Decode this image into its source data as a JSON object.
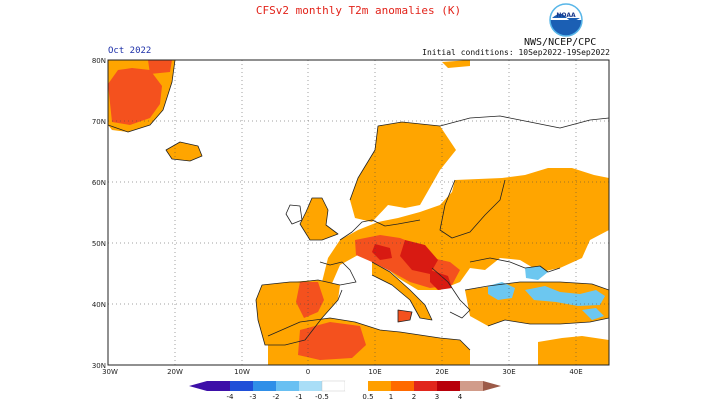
{
  "header": {
    "title": "CFSv2 monthly T2m anomalies (K)",
    "agency": "NWS/NCEP/CPC",
    "period": "Oct 2022",
    "initial_conditions": "Initial conditions: 10Sep2022-19Sep2022",
    "logo_text": "NOAA"
  },
  "map": {
    "region": "Europe",
    "lat_range": [
      30,
      80
    ],
    "lon_range": [
      -30,
      45
    ],
    "lat_labels": [
      "80N",
      "70N",
      "60N",
      "50N",
      "40N",
      "30N"
    ],
    "lon_labels": [
      "30W",
      "20W",
      "10W",
      "0",
      "10E",
      "20E",
      "30E",
      "40E"
    ],
    "projection": "lat-lon grid with dotted gridlines every 10 degrees"
  },
  "colorbar": {
    "ticks": [
      "-4",
      "-3",
      "-2",
      "-1",
      "-0.5",
      "0.5",
      "1",
      "2",
      "3",
      "4"
    ],
    "colors": [
      "#3d0fa8",
      "#1f4fd8",
      "#2f8fe8",
      "#69c0f2",
      "#a9def7",
      "#ffffff",
      "#ff9f00",
      "#ff6a00",
      "#e1261c",
      "#b8000a",
      "#d19c8a",
      "#9c5a48"
    ]
  },
  "colors": {
    "anomaly_0_5_to_1": "#ffa500",
    "anomaly_1_to_2": "#f4511e",
    "anomaly_2_to_3": "#d81a12",
    "anomaly_neg_0_5_to_neg_1": "#6cc7f0",
    "coastline": "#222222"
  }
}
